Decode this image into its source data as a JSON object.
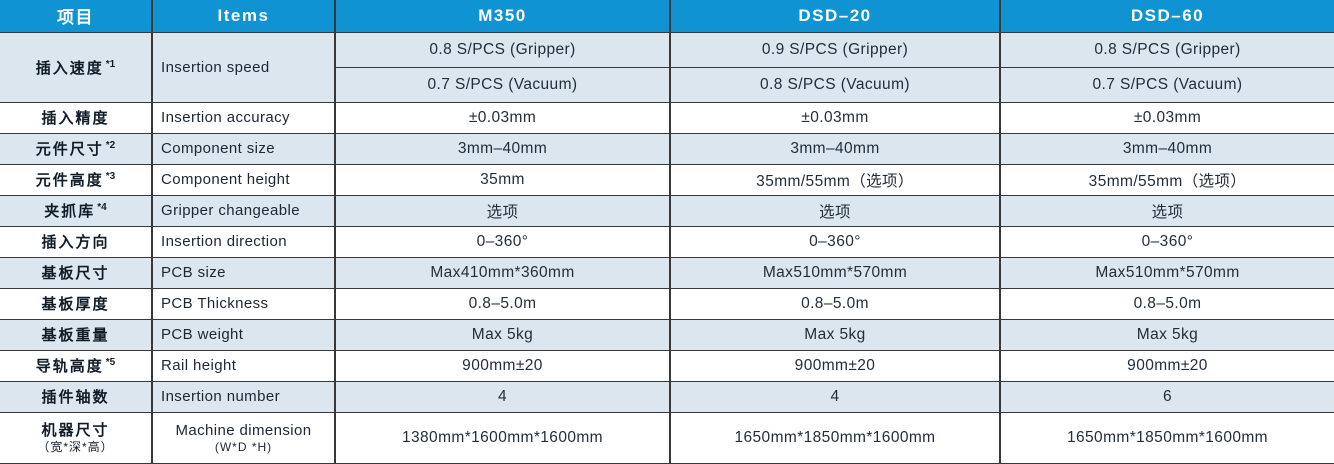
{
  "colors": {
    "header_bg": "#0f93d2",
    "row_alt_bg": "#dbe6ee",
    "row_bg": "#ffffff",
    "border": "#383838",
    "header_text": "#ffffff",
    "body_text": "#222e3a"
  },
  "table": {
    "header": {
      "item_zh": "项目",
      "item_en": "Items",
      "models": [
        "M350",
        "DSD–20",
        "DSD–60"
      ]
    },
    "rows": [
      {
        "item_zh": "插入速度",
        "note": "*1",
        "item_en": "Insertion speed",
        "subrows": [
          [
            "0.8 S/PCS (Gripper)",
            "0.9 S/PCS (Gripper)",
            "0.8 S/PCS (Gripper)"
          ],
          [
            "0.7 S/PCS (Vacuum)",
            "0.8 S/PCS (Vacuum)",
            "0.7 S/PCS (Vacuum)"
          ]
        ]
      },
      {
        "item_zh": "插入精度",
        "note": "",
        "item_en": "Insertion accuracy",
        "values": [
          "±0.03mm",
          "±0.03mm",
          "±0.03mm"
        ]
      },
      {
        "item_zh": "元件尺寸",
        "note": "*2",
        "item_en": "Component size",
        "values": [
          "3mm–40mm",
          "3mm–40mm",
          "3mm–40mm"
        ]
      },
      {
        "item_zh": "元件高度",
        "note": "*3",
        "item_en": "Component height",
        "values": [
          "35mm",
          "35mm/55mm（选项）",
          "35mm/55mm（选项）"
        ]
      },
      {
        "item_zh": "夹抓库",
        "note": "*4",
        "item_en": "Gripper changeable",
        "values": [
          "选项",
          "选项",
          "选项"
        ]
      },
      {
        "item_zh": "插入方向",
        "note": "",
        "item_en": "Insertion direction",
        "values": [
          "0–360°",
          "0–360°",
          "0–360°"
        ]
      },
      {
        "item_zh": "基板尺寸",
        "note": "",
        "item_en": "PCB size",
        "values": [
          "Max410mm*360mm",
          "Max510mm*570mm",
          "Max510mm*570mm"
        ]
      },
      {
        "item_zh": "基板厚度",
        "note": "",
        "item_en": "PCB Thickness",
        "values": [
          "0.8–5.0m",
          "0.8–5.0m",
          "0.8–5.0m"
        ]
      },
      {
        "item_zh": "基板重量",
        "note": "",
        "item_en": "PCB weight",
        "values": [
          "Max 5kg",
          "Max 5kg",
          "Max 5kg"
        ]
      },
      {
        "item_zh": "导轨高度",
        "note": "*5",
        "item_en": "Rail height",
        "values": [
          "900mm±20",
          "900mm±20",
          "900mm±20"
        ]
      },
      {
        "item_zh": "插件轴数",
        "note": "",
        "item_en": "Insertion number",
        "values": [
          "4",
          "4",
          "6"
        ]
      },
      {
        "item_zh": "机器尺寸",
        "item_zh_sub": "（宽*深*高）",
        "note": "",
        "item_en": "Machine dimension",
        "item_en_sub": "(W*D *H)",
        "values": [
          "1380mm*1600mm*1600mm",
          "1650mm*1850mm*1600mm",
          "1650mm*1850mm*1600mm"
        ]
      }
    ]
  }
}
